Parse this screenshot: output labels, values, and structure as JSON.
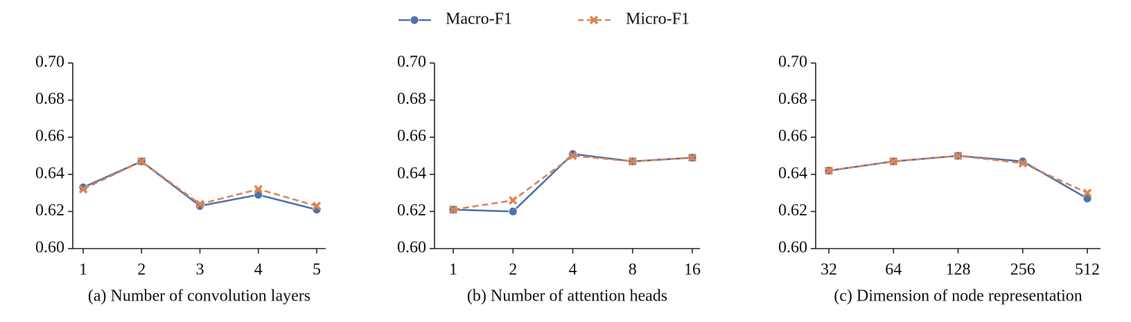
{
  "chart_data": [
    {
      "type": "line",
      "caption": "(a) Number of convolution layers",
      "categories": [
        "1",
        "2",
        "3",
        "4",
        "5"
      ],
      "series": [
        {
          "name": "Macro-F1",
          "color": "#4c72b0",
          "marker": "circle",
          "dashed": false,
          "values": [
            0.633,
            0.647,
            0.623,
            0.629,
            0.621
          ]
        },
        {
          "name": "Micro-F1",
          "color": "#dd8452",
          "marker": "x",
          "dashed": true,
          "values": [
            0.632,
            0.647,
            0.624,
            0.632,
            0.623
          ]
        }
      ],
      "ylim": [
        0.6,
        0.7
      ],
      "yticks": [
        {
          "value": 0.6,
          "label": "0.60"
        },
        {
          "value": 0.62,
          "label": "0.62"
        },
        {
          "value": 0.64,
          "label": "0.64"
        },
        {
          "value": 0.66,
          "label": "0.66"
        },
        {
          "value": 0.68,
          "label": "0.68"
        },
        {
          "value": 0.7,
          "label": "0.70"
        }
      ]
    },
    {
      "type": "line",
      "caption": "(b) Number of attention heads",
      "categories": [
        "1",
        "2",
        "4",
        "8",
        "16"
      ],
      "series": [
        {
          "name": "Macro-F1",
          "color": "#4c72b0",
          "marker": "circle",
          "dashed": false,
          "values": [
            0.621,
            0.62,
            0.651,
            0.647,
            0.649
          ]
        },
        {
          "name": "Micro-F1",
          "color": "#dd8452",
          "marker": "x",
          "dashed": true,
          "values": [
            0.621,
            0.626,
            0.65,
            0.647,
            0.649
          ]
        }
      ],
      "ylim": [
        0.6,
        0.7
      ],
      "yticks": [
        {
          "value": 0.6,
          "label": "0.60"
        },
        {
          "value": 0.62,
          "label": "0.62"
        },
        {
          "value": 0.64,
          "label": "0.64"
        },
        {
          "value": 0.66,
          "label": "0.66"
        },
        {
          "value": 0.68,
          "label": "0.68"
        },
        {
          "value": 0.7,
          "label": "0.70"
        }
      ]
    },
    {
      "type": "line",
      "caption": "(c) Dimension of node representation",
      "categories": [
        "32",
        "64",
        "128",
        "256",
        "512"
      ],
      "series": [
        {
          "name": "Macro-F1",
          "color": "#4c72b0",
          "marker": "circle",
          "dashed": false,
          "values": [
            0.642,
            0.647,
            0.65,
            0.647,
            0.627
          ]
        },
        {
          "name": "Micro-F1",
          "color": "#dd8452",
          "marker": "x",
          "dashed": true,
          "values": [
            0.642,
            0.647,
            0.65,
            0.646,
            0.63
          ]
        }
      ],
      "ylim": [
        0.6,
        0.7
      ],
      "yticks": [
        {
          "value": 0.6,
          "label": "0.60"
        },
        {
          "value": 0.62,
          "label": "0.62"
        },
        {
          "value": 0.64,
          "label": "0.64"
        },
        {
          "value": 0.66,
          "label": "0.66"
        },
        {
          "value": 0.68,
          "label": "0.68"
        },
        {
          "value": 0.7,
          "label": "0.70"
        }
      ]
    }
  ]
}
